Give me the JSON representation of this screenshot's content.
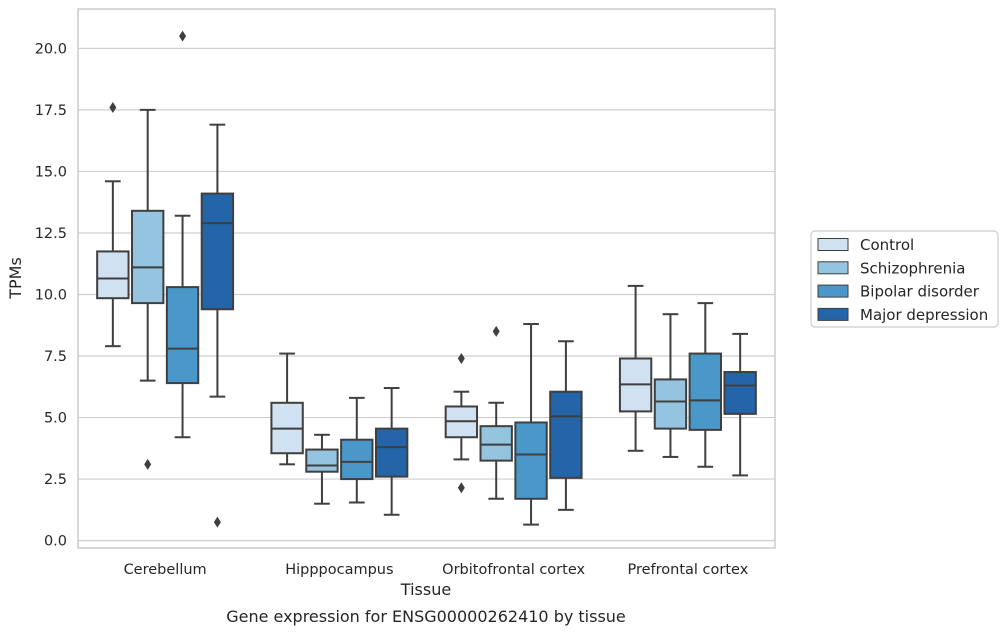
{
  "chart_data": {
    "type": "boxplot",
    "title": "",
    "caption": "Gene expression for ENSG00000262410 by tissue",
    "xlabel": "Tissue",
    "ylabel": "TPMs",
    "ylim": [
      -0.3,
      21.6
    ],
    "yticks": [
      "0.0",
      "2.5",
      "5.0",
      "7.5",
      "10.0",
      "12.5",
      "15.0",
      "17.5",
      "20.0"
    ],
    "ytick_values": [
      0,
      2.5,
      5,
      7.5,
      10,
      12.5,
      15,
      17.5,
      20
    ],
    "categories": [
      "Cerebellum",
      "Hipppocampus",
      "Orbitofrontal cortex",
      "Prefrontal cortex"
    ],
    "grid": "horizontal",
    "legend_position": "right-outside",
    "series": [
      {
        "name": "Control",
        "color": "#d0e1f2",
        "boxes": [
          {
            "whislo": 7.9,
            "q1": 9.85,
            "med": 10.65,
            "q3": 11.75,
            "whishi": 14.6,
            "fliers": [
              17.6
            ]
          },
          {
            "whislo": 3.1,
            "q1": 3.55,
            "med": 4.55,
            "q3": 5.6,
            "whishi": 7.6,
            "fliers": []
          },
          {
            "whislo": 3.3,
            "q1": 4.2,
            "med": 4.85,
            "q3": 5.45,
            "whishi": 6.05,
            "fliers": [
              7.4,
              2.15
            ]
          },
          {
            "whislo": 3.65,
            "q1": 5.25,
            "med": 6.35,
            "q3": 7.4,
            "whishi": 10.35,
            "fliers": []
          }
        ]
      },
      {
        "name": "Schizophrenia",
        "color": "#94c4df",
        "boxes": [
          {
            "whislo": 6.5,
            "q1": 9.65,
            "med": 11.1,
            "q3": 13.4,
            "whishi": 17.5,
            "fliers": [
              3.1
            ]
          },
          {
            "whislo": 1.5,
            "q1": 2.8,
            "med": 3.05,
            "q3": 3.7,
            "whishi": 4.3,
            "fliers": []
          },
          {
            "whislo": 1.7,
            "q1": 3.25,
            "med": 3.9,
            "q3": 4.65,
            "whishi": 5.6,
            "fliers": [
              8.5
            ]
          },
          {
            "whislo": 3.4,
            "q1": 4.55,
            "med": 5.65,
            "q3": 6.55,
            "whishi": 9.2,
            "fliers": []
          }
        ]
      },
      {
        "name": "Bipolar disorder",
        "color": "#4a98c9",
        "boxes": [
          {
            "whislo": 4.2,
            "q1": 6.4,
            "med": 7.8,
            "q3": 10.3,
            "whishi": 13.2,
            "fliers": [
              20.5
            ]
          },
          {
            "whislo": 1.55,
            "q1": 2.5,
            "med": 3.2,
            "q3": 4.1,
            "whishi": 5.8,
            "fliers": []
          },
          {
            "whislo": 0.65,
            "q1": 1.7,
            "med": 3.5,
            "q3": 4.8,
            "whishi": 8.8,
            "fliers": []
          },
          {
            "whislo": 3.0,
            "q1": 4.5,
            "med": 5.7,
            "q3": 7.6,
            "whishi": 9.65,
            "fliers": []
          }
        ]
      },
      {
        "name": "Major depression",
        "color": "#2464a9",
        "boxes": [
          {
            "whislo": 5.85,
            "q1": 9.4,
            "med": 12.9,
            "q3": 14.1,
            "whishi": 16.9,
            "fliers": [
              0.75
            ]
          },
          {
            "whislo": 1.05,
            "q1": 2.6,
            "med": 3.8,
            "q3": 4.55,
            "whishi": 6.2,
            "fliers": []
          },
          {
            "whislo": 1.25,
            "q1": 2.55,
            "med": 5.05,
            "q3": 6.05,
            "whishi": 8.1,
            "fliers": []
          },
          {
            "whislo": 2.65,
            "q1": 5.15,
            "med": 6.3,
            "q3": 6.85,
            "whishi": 8.4,
            "fliers": []
          }
        ]
      }
    ]
  }
}
